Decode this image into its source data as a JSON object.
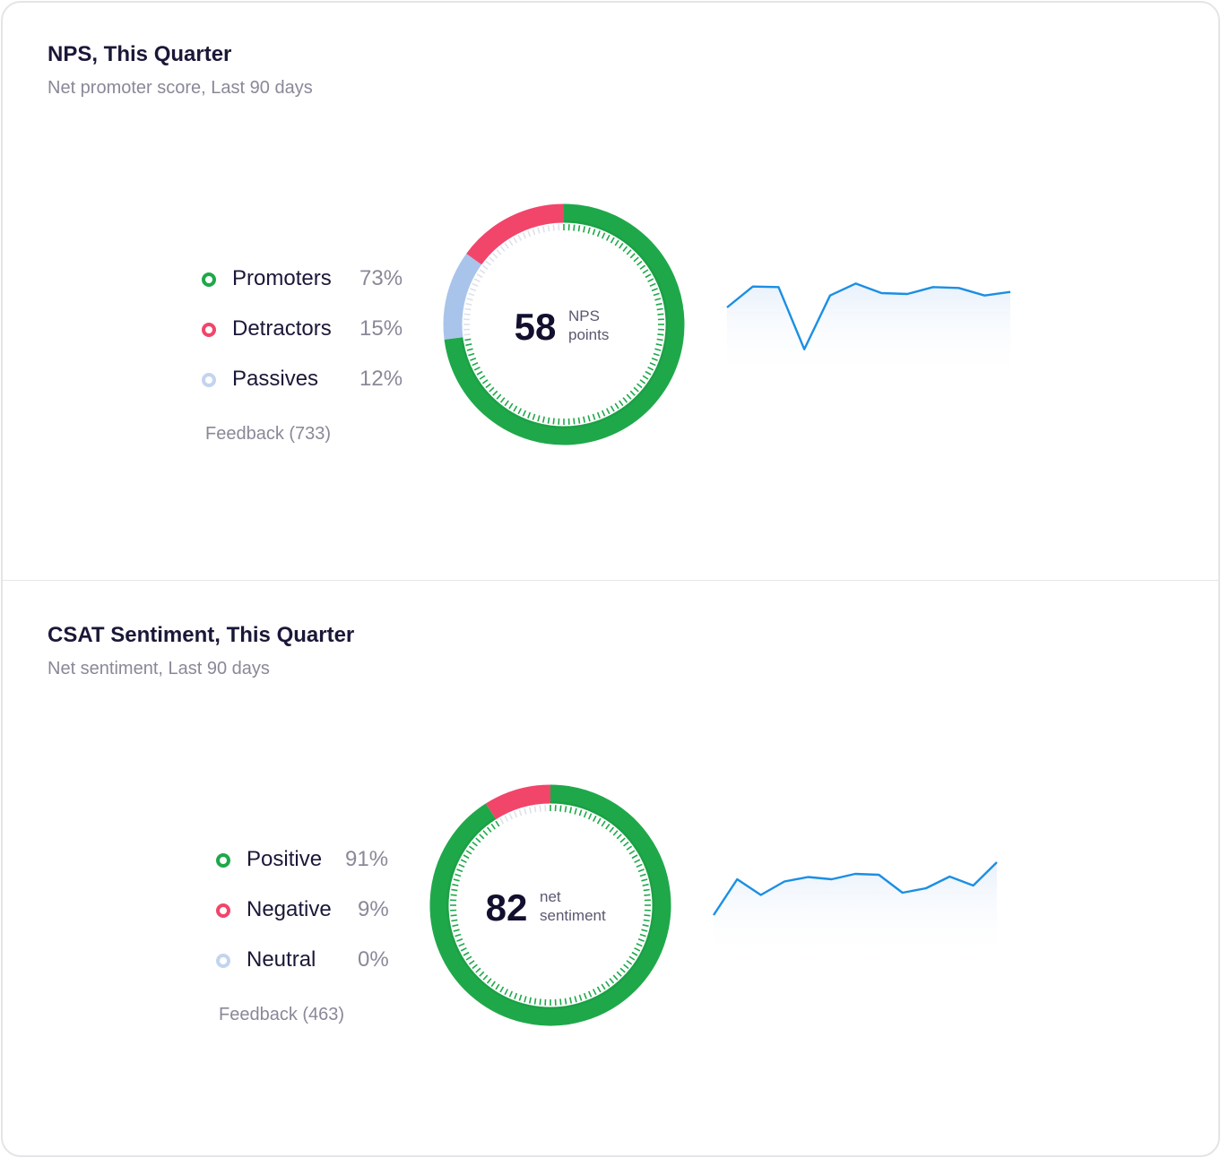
{
  "colors": {
    "green": "#1fa84a",
    "red": "#f2456a",
    "blue": "#a9c4ea",
    "line": "#1b8fe3"
  },
  "sections": [
    {
      "title": "NPS, This Quarter",
      "subtitle": "Net promoter score, Last 90 days",
      "legend": [
        {
          "label": "Promoters",
          "value": "73%",
          "color": "#1fa84a"
        },
        {
          "label": "Detractors",
          "value": "15%",
          "color": "#f2456a"
        },
        {
          "label": "Passives",
          "value": "12%",
          "color": "#a9c4ea"
        }
      ],
      "feedback": "Feedback (733)",
      "score": "58",
      "unit_line1": "NPS",
      "unit_line2": "points"
    },
    {
      "title": "CSAT Sentiment, This Quarter",
      "subtitle": "Net sentiment, Last 90 days",
      "legend": [
        {
          "label": "Positive",
          "value": "91%",
          "color": "#1fa84a"
        },
        {
          "label": "Negative",
          "value": "9%",
          "color": "#f2456a"
        },
        {
          "label": "Neutral",
          "value": "0%",
          "color": "#a9c4ea"
        }
      ],
      "feedback": "Feedback (463)",
      "score": "82",
      "unit_line1": "net",
      "unit_line2": "sentiment"
    }
  ],
  "chart_data": [
    {
      "type": "pie",
      "categories": [
        "Promoters",
        "Passives",
        "Detractors"
      ],
      "values": [
        73,
        12,
        15
      ],
      "center_value": 58,
      "center_label": "NPS points"
    },
    {
      "type": "line",
      "x": [
        1,
        2,
        3,
        4,
        5,
        6,
        7,
        8,
        9,
        10,
        11,
        12
      ],
      "values": [
        58,
        65,
        64.8,
        44,
        62,
        66,
        62.8,
        62.5,
        64.8,
        64.5,
        62,
        63.2
      ],
      "ylim": [
        40,
        70
      ]
    },
    {
      "type": "pie",
      "categories": [
        "Positive",
        "Neutral",
        "Negative"
      ],
      "values": [
        91,
        0,
        9
      ],
      "center_value": 82,
      "center_label": "net sentiment"
    },
    {
      "type": "line",
      "x": [
        1,
        2,
        3,
        4,
        5,
        6,
        7,
        8,
        9,
        10,
        11,
        12,
        13
      ],
      "values": [
        76,
        84,
        80.5,
        83.5,
        84.5,
        84,
        85.2,
        85,
        81,
        82,
        84.6,
        82.6,
        87.8
      ],
      "ylim": [
        70,
        90
      ]
    }
  ]
}
